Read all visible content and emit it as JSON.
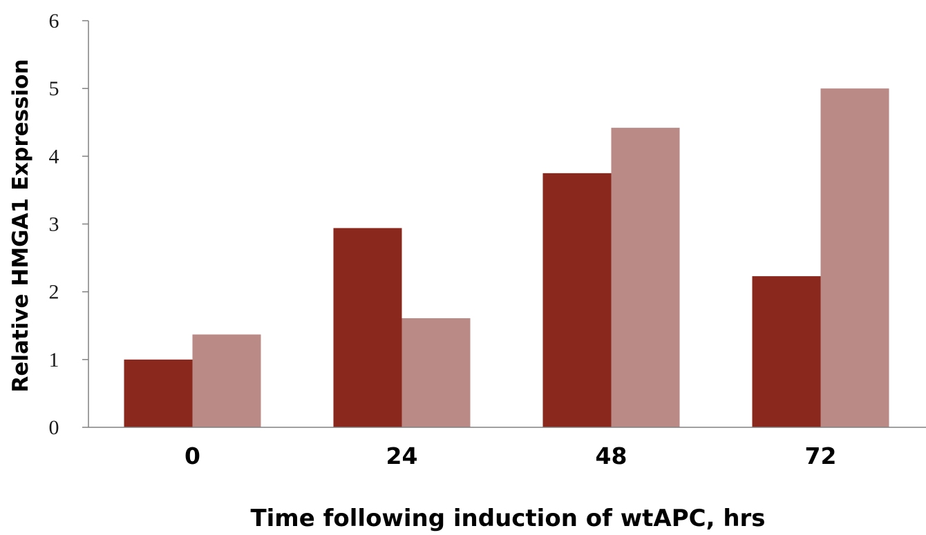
{
  "chart_data": {
    "type": "bar",
    "title": "",
    "xlabel": "Time following induction of wtAPC, hrs",
    "ylabel": "Relative HMGA1 Expression",
    "categories": [
      "0",
      "24",
      "48",
      "72"
    ],
    "series": [
      {
        "values": [
          1.0,
          2.94,
          3.75,
          2.23
        ],
        "color": "#8B281E"
      },
      {
        "values": [
          1.37,
          1.61,
          4.42,
          5.0
        ],
        "color": "#BA8A87"
      }
    ],
    "ylim": [
      0,
      6
    ],
    "yticks": [
      "0",
      "1",
      "2",
      "3",
      "4",
      "5",
      "6"
    ],
    "grid": false,
    "legend": "none",
    "axis_color": "#808080"
  }
}
